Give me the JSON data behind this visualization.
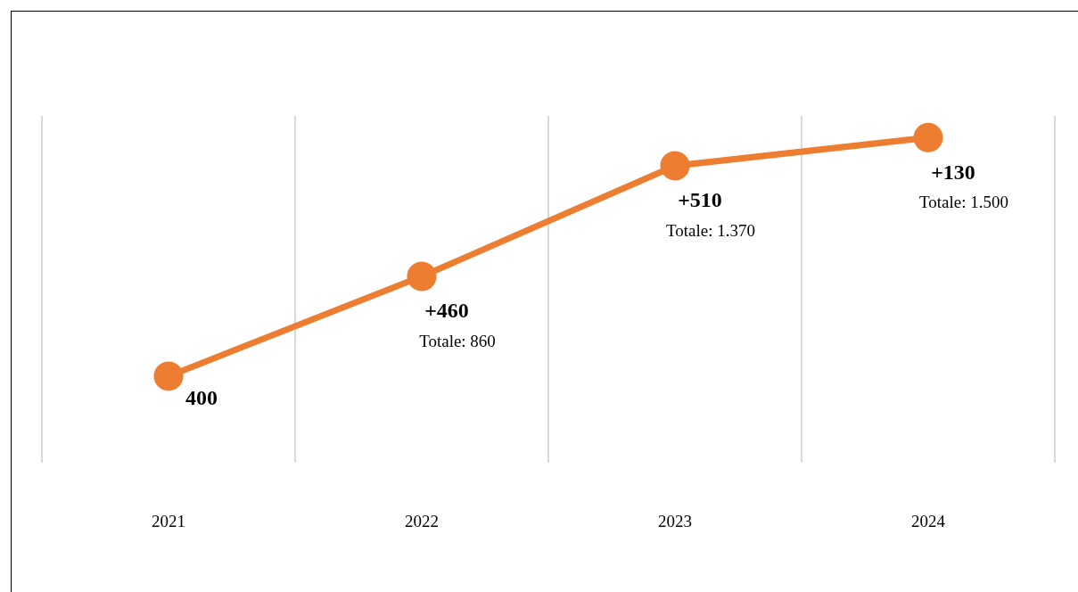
{
  "chart_data": {
    "type": "line",
    "categories": [
      "2021",
      "2022",
      "2023",
      "2024"
    ],
    "series": [
      {
        "color": "#ed7d31",
        "values": [
          400,
          860,
          1370,
          1500
        ],
        "value_labels": [
          "400",
          "Totale: 860",
          "Totale: 1.370",
          "Totale: 1.500"
        ]
      }
    ],
    "tick_labels": "x",
    "grid": "x",
    "legend": false,
    "marker": "circle",
    "line_style": "solid",
    "annotations": [
      {
        "text": "+460",
        "x": "2022",
        "y": 860
      },
      {
        "text": "+510",
        "x": "2023",
        "y": 1370
      },
      {
        "text": "+130",
        "x": "2024",
        "y": 1500
      }
    ]
  }
}
